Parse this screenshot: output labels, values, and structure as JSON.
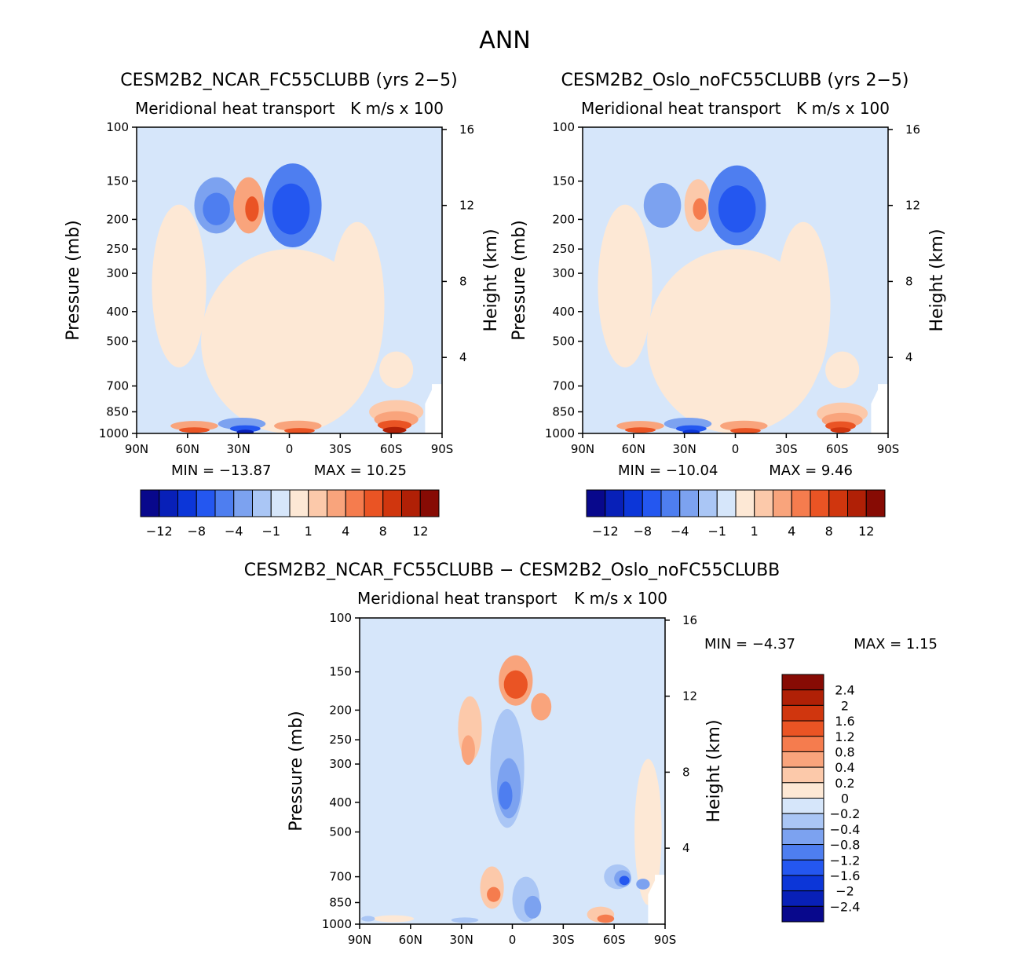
{
  "figure": {
    "title": "ANN",
    "season": "ANN",
    "units": "K m/s x 100",
    "field": "Meridional heat transport"
  },
  "chart_data": [
    {
      "type": "heatmap",
      "panel": "case",
      "title": "CESM2B2_NCAR_FC55CLUBB (yrs 2-5)",
      "subtitle_left": "Meridional heat transport",
      "subtitle_right": "K m/s x 100",
      "xlabel": "",
      "ylabel": "Pressure (mb)",
      "ylabel_right": "Height (km)",
      "x_ticks": [
        "90N",
        "60N",
        "30N",
        "0",
        "30S",
        "60S",
        "90S"
      ],
      "y_ticks": [
        "100",
        "150",
        "200",
        "250",
        "300",
        "400",
        "500",
        "700",
        "850",
        "1000"
      ],
      "y_ticks_right": [
        "16",
        "12",
        "8",
        "4"
      ],
      "xlim": [
        90,
        -90
      ],
      "ylim": [
        100,
        1000
      ],
      "min_label": "MIN = -13.87",
      "max_label": "MAX = 10.25",
      "min": -13.87,
      "max": 10.25,
      "colorbar_labels": [
        "-12",
        "-8",
        "-4",
        "-1",
        "1",
        "4",
        "8",
        "12"
      ],
      "colorbar_colors": [
        "#08088c",
        "#0820b8",
        "#0c36d8",
        "#2457f0",
        "#4e7ef0",
        "#7ca2f0",
        "#aac6f5",
        "#d6e6fa",
        "#fde8d5",
        "#fcc9aa",
        "#f9a47c",
        "#f57c4e",
        "#ea5424",
        "#d0360e",
        "#b02006",
        "#870b04"
      ],
      "blobs": [
        {
          "lat": 0,
          "p": 500,
          "rx": 52,
          "ry": 600,
          "level": 1
        },
        {
          "lat": 65,
          "p": 330,
          "rx": 16,
          "ry": 360,
          "level": 1
        },
        {
          "lat": 43,
          "p": 180,
          "rx": 13,
          "ry": 75,
          "level": -3
        },
        {
          "lat": 43,
          "p": 185,
          "rx": 8,
          "ry": 45,
          "level": -4
        },
        {
          "lat": 24,
          "p": 180,
          "rx": 9,
          "ry": 75,
          "level": 3
        },
        {
          "lat": 22,
          "p": 185,
          "rx": 4,
          "ry": 35,
          "level": 5
        },
        {
          "lat": -2,
          "p": 180,
          "rx": 17,
          "ry": 110,
          "level": -4
        },
        {
          "lat": -1,
          "p": 185,
          "rx": 11,
          "ry": 70,
          "level": -5
        },
        {
          "lat": -40,
          "p": 380,
          "rx": 16,
          "ry": 420,
          "level": 1
        },
        {
          "lat": -63,
          "p": 620,
          "rx": 10,
          "ry": 170,
          "level": 1
        },
        {
          "lat": 56,
          "p": 945,
          "rx": 14,
          "ry": 70,
          "level": 3
        },
        {
          "lat": 56,
          "p": 975,
          "rx": 9,
          "ry": 40,
          "level": 5
        },
        {
          "lat": 28,
          "p": 930,
          "rx": 14,
          "ry": 85,
          "level": -3
        },
        {
          "lat": 26,
          "p": 965,
          "rx": 9,
          "ry": 50,
          "level": -5
        },
        {
          "lat": 26,
          "p": 990,
          "rx": 5,
          "ry": 25,
          "level": -7
        },
        {
          "lat": -5,
          "p": 945,
          "rx": 14,
          "ry": 75,
          "level": 3
        },
        {
          "lat": -6,
          "p": 980,
          "rx": 9,
          "ry": 40,
          "level": 5
        },
        {
          "lat": -63,
          "p": 850,
          "rx": 16,
          "ry": 150,
          "level": 2
        },
        {
          "lat": -63,
          "p": 900,
          "rx": 13,
          "ry": 110,
          "level": 3
        },
        {
          "lat": -62,
          "p": 940,
          "rx": 10,
          "ry": 70,
          "level": 5
        },
        {
          "lat": -62,
          "p": 975,
          "rx": 7,
          "ry": 45,
          "level": 7
        }
      ]
    },
    {
      "type": "heatmap",
      "panel": "control",
      "title": "CESM2B2_Oslo_noFC55CLUBB (yrs 2-5)",
      "subtitle_left": "Meridional heat transport",
      "subtitle_right": "K m/s x 100",
      "xlabel": "",
      "ylabel": "Pressure (mb)",
      "ylabel_right": "Height (km)",
      "x_ticks": [
        "90N",
        "60N",
        "30N",
        "0",
        "30S",
        "60S",
        "90S"
      ],
      "y_ticks": [
        "100",
        "150",
        "200",
        "250",
        "300",
        "400",
        "500",
        "700",
        "850",
        "1000"
      ],
      "y_ticks_right": [
        "16",
        "12",
        "8",
        "4"
      ],
      "xlim": [
        90,
        -90
      ],
      "ylim": [
        100,
        1000
      ],
      "min_label": "MIN = -10.04",
      "max_label": "MAX = 9.46",
      "min": -10.04,
      "max": 9.46,
      "colorbar_labels": [
        "-12",
        "-8",
        "-4",
        "-1",
        "1",
        "4",
        "8",
        "12"
      ],
      "colorbar_colors": [
        "#08088c",
        "#0820b8",
        "#0c36d8",
        "#2457f0",
        "#4e7ef0",
        "#7ca2f0",
        "#aac6f5",
        "#d6e6fa",
        "#fde8d5",
        "#fcc9aa",
        "#f9a47c",
        "#f57c4e",
        "#ea5424",
        "#d0360e",
        "#b02006",
        "#870b04"
      ],
      "blobs": [
        {
          "lat": 0,
          "p": 500,
          "rx": 52,
          "ry": 600,
          "level": 1
        },
        {
          "lat": 65,
          "p": 330,
          "rx": 16,
          "ry": 360,
          "level": 1
        },
        {
          "lat": 43,
          "p": 180,
          "rx": 11,
          "ry": 60,
          "level": -3
        },
        {
          "lat": 22,
          "p": 180,
          "rx": 8,
          "ry": 70,
          "level": 2
        },
        {
          "lat": 21,
          "p": 185,
          "rx": 4,
          "ry": 30,
          "level": 4
        },
        {
          "lat": -1,
          "p": 180,
          "rx": 17,
          "ry": 105,
          "level": -4
        },
        {
          "lat": -1,
          "p": 185,
          "rx": 11,
          "ry": 65,
          "level": -5
        },
        {
          "lat": -40,
          "p": 380,
          "rx": 16,
          "ry": 420,
          "level": 1
        },
        {
          "lat": -63,
          "p": 620,
          "rx": 10,
          "ry": 170,
          "level": 1
        },
        {
          "lat": 56,
          "p": 945,
          "rx": 14,
          "ry": 70,
          "level": 3
        },
        {
          "lat": 56,
          "p": 975,
          "rx": 9,
          "ry": 40,
          "level": 5
        },
        {
          "lat": 28,
          "p": 930,
          "rx": 14,
          "ry": 85,
          "level": -3
        },
        {
          "lat": 26,
          "p": 965,
          "rx": 9,
          "ry": 50,
          "level": -5
        },
        {
          "lat": 26,
          "p": 990,
          "rx": 5,
          "ry": 25,
          "level": -6
        },
        {
          "lat": -5,
          "p": 945,
          "rx": 14,
          "ry": 75,
          "level": 3
        },
        {
          "lat": -6,
          "p": 980,
          "rx": 9,
          "ry": 40,
          "level": 5
        },
        {
          "lat": -63,
          "p": 860,
          "rx": 15,
          "ry": 140,
          "level": 2
        },
        {
          "lat": -63,
          "p": 905,
          "rx": 12,
          "ry": 100,
          "level": 3
        },
        {
          "lat": -62,
          "p": 945,
          "rx": 9,
          "ry": 65,
          "level": 5
        },
        {
          "lat": -62,
          "p": 975,
          "rx": 6,
          "ry": 40,
          "level": 6
        }
      ]
    },
    {
      "type": "heatmap",
      "panel": "difference",
      "title": "CESM2B2_NCAR_FC55CLUBB - CESM2B2_Oslo_noFC55CLUBB",
      "subtitle_left": "Meridional heat transport",
      "subtitle_right": "K m/s x 100",
      "xlabel": "",
      "ylabel": "Pressure (mb)",
      "ylabel_right": "Height (km)",
      "x_ticks": [
        "90N",
        "60N",
        "30N",
        "0",
        "30S",
        "60S",
        "90S"
      ],
      "y_ticks": [
        "100",
        "150",
        "200",
        "250",
        "300",
        "400",
        "500",
        "700",
        "850",
        "1000"
      ],
      "y_ticks_right": [
        "16",
        "12",
        "8",
        "4"
      ],
      "xlim": [
        90,
        -90
      ],
      "ylim": [
        100,
        1000
      ],
      "min_label": "MIN = -4.37",
      "max_label": "MAX = 1.15",
      "min": -4.37,
      "max": 1.15,
      "colorbar_labels": [
        "2.4",
        "2",
        "1.6",
        "1.2",
        "0.8",
        "0.4",
        "0.2",
        "0",
        "-0.2",
        "-0.4",
        "-0.8",
        "-1.2",
        "-1.6",
        "-2",
        "-2.4"
      ],
      "colorbar_colors": [
        "#870b04",
        "#b02006",
        "#d0360e",
        "#ea5424",
        "#f57c4e",
        "#f9a47c",
        "#fcc9aa",
        "#fde8d5",
        "#d6e6fa",
        "#aac6f5",
        "#7ca2f0",
        "#4e7ef0",
        "#2457f0",
        "#0c36d8",
        "#0820b8",
        "#08088c"
      ],
      "blobs": [
        {
          "lat": 45,
          "p": 520,
          "rx": 25,
          "ry": 620,
          "level": -1
        },
        {
          "lat": -30,
          "p": 560,
          "rx": 30,
          "ry": 600,
          "level": -1
        },
        {
          "lat": -80,
          "p": 500,
          "rx": 8,
          "ry": 500,
          "level": 1
        },
        {
          "lat": 25,
          "p": 230,
          "rx": 7,
          "ry": 110,
          "level": 2
        },
        {
          "lat": 26,
          "p": 270,
          "rx": 4,
          "ry": 60,
          "level": 3
        },
        {
          "lat": 3,
          "p": 310,
          "rx": 10,
          "ry": 260,
          "level": -2
        },
        {
          "lat": 2,
          "p": 360,
          "rx": 7,
          "ry": 160,
          "level": -3
        },
        {
          "lat": 4,
          "p": 380,
          "rx": 4,
          "ry": 80,
          "level": -4
        },
        {
          "lat": -2,
          "p": 160,
          "rx": 10,
          "ry": 60,
          "level": 3
        },
        {
          "lat": -2,
          "p": 165,
          "rx": 7,
          "ry": 35,
          "level": 5
        },
        {
          "lat": -17,
          "p": 195,
          "rx": 6,
          "ry": 40,
          "level": 3
        },
        {
          "lat": 12,
          "p": 760,
          "rx": 7,
          "ry": 240,
          "level": 2
        },
        {
          "lat": 11,
          "p": 800,
          "rx": 4,
          "ry": 90,
          "level": 4
        },
        {
          "lat": -8,
          "p": 830,
          "rx": 8,
          "ry": 280,
          "level": -2
        },
        {
          "lat": -12,
          "p": 880,
          "rx": 5,
          "ry": 150,
          "level": -3
        },
        {
          "lat": -62,
          "p": 700,
          "rx": 8,
          "ry": 130,
          "level": -2
        },
        {
          "lat": -65,
          "p": 710,
          "rx": 5,
          "ry": 90,
          "level": -3
        },
        {
          "lat": -66,
          "p": 720,
          "rx": 3,
          "ry": 50,
          "level": -5
        },
        {
          "lat": -52,
          "p": 930,
          "rx": 8,
          "ry": 110,
          "level": 2
        },
        {
          "lat": -55,
          "p": 960,
          "rx": 5,
          "ry": 60,
          "level": 4
        },
        {
          "lat": 70,
          "p": 960,
          "rx": 12,
          "ry": 50,
          "level": 1
        },
        {
          "lat": 85,
          "p": 960,
          "rx": 4,
          "ry": 40,
          "level": -2
        },
        {
          "lat": 28,
          "p": 970,
          "rx": 8,
          "ry": 40,
          "level": -2
        },
        {
          "lat": -77,
          "p": 740,
          "rx": 4,
          "ry": 60,
          "level": -3
        }
      ]
    }
  ]
}
